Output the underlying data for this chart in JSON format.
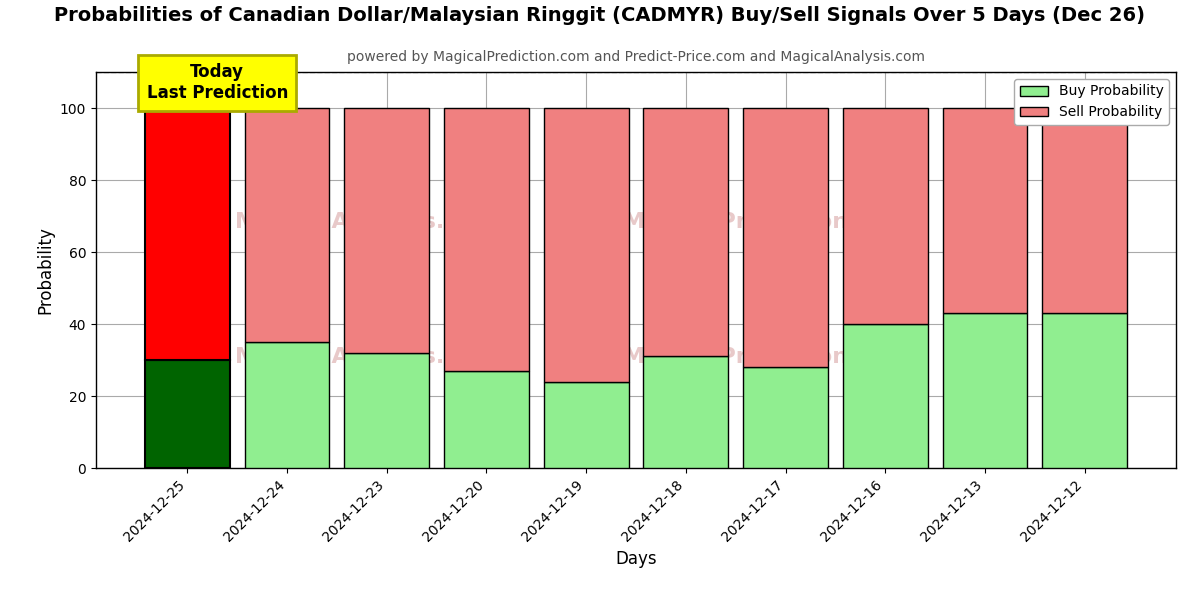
{
  "title": "Probabilities of Canadian Dollar/Malaysian Ringgit (CADMYR) Buy/Sell Signals Over 5 Days (Dec 26)",
  "subtitle": "powered by MagicalPrediction.com and Predict-Price.com and MagicalAnalysis.com",
  "xlabel": "Days",
  "ylabel": "Probability",
  "categories": [
    "2024-12-25",
    "2024-12-24",
    "2024-12-23",
    "2024-12-20",
    "2024-12-19",
    "2024-12-18",
    "2024-12-17",
    "2024-12-16",
    "2024-12-13",
    "2024-12-12"
  ],
  "buy_values": [
    30,
    35,
    32,
    27,
    24,
    31,
    28,
    40,
    43,
    43
  ],
  "sell_values": [
    70,
    65,
    68,
    73,
    76,
    69,
    72,
    60,
    57,
    57
  ],
  "today_bar_buy_color": "#006400",
  "today_bar_sell_color": "#ff0000",
  "other_bar_buy_color": "#90EE90",
  "other_bar_sell_color": "#F08080",
  "today_annotation_bg": "#ffff00",
  "today_annotation_text": "Today\nLast Prediction",
  "ylim": [
    0,
    110
  ],
  "dashed_line_y": 110,
  "legend_buy_label": "Buy Probability",
  "legend_sell_label": "Sell Probability",
  "bar_width": 0.85,
  "edgecolor": "#000000",
  "grid_color": "#aaaaaa",
  "background_color": "#ffffff",
  "title_fontsize": 14,
  "subtitle_fontsize": 10,
  "xlabel_text": "Days",
  "ylabel_text": "Probability"
}
